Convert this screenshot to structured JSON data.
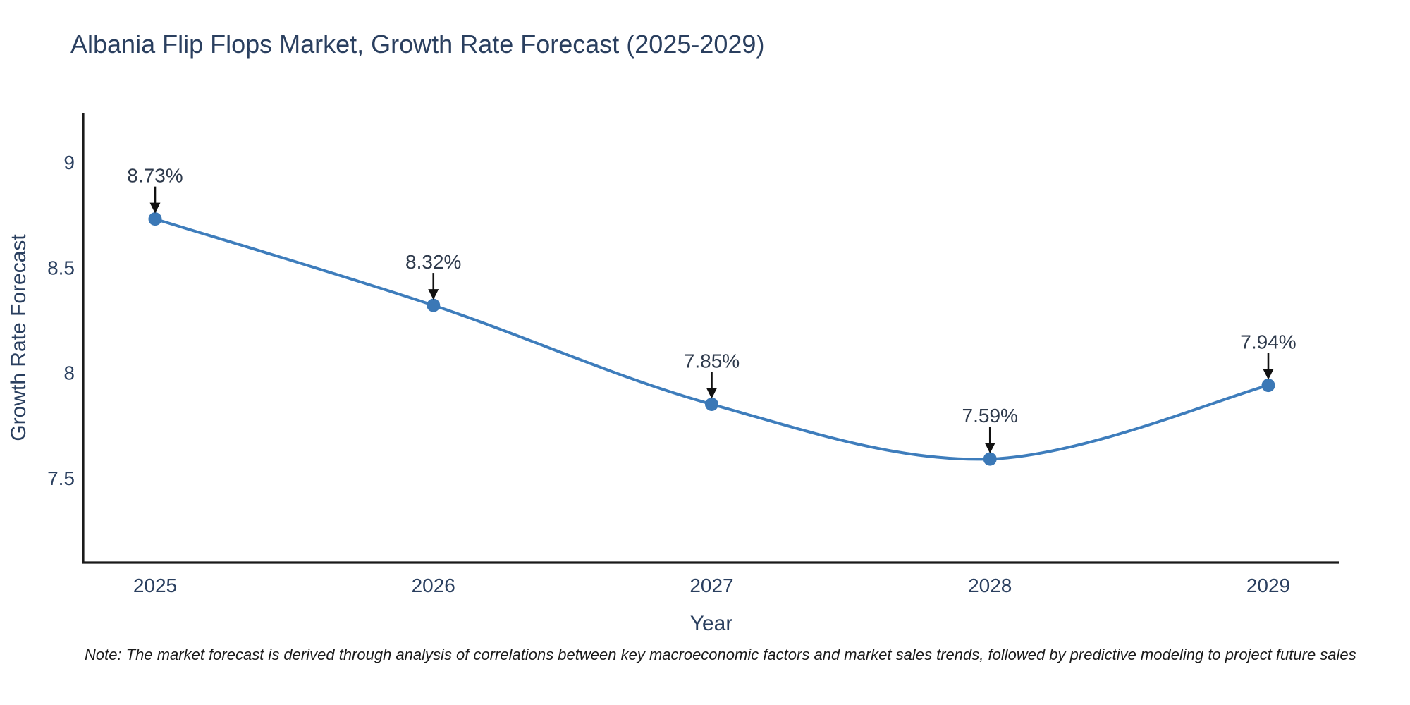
{
  "title": "Albania Flip Flops Market, Growth Rate Forecast (2025-2029)",
  "note": "Note: The market forecast is derived through analysis of correlations between key macroeconomic factors and market sales trends, followed by predictive modeling to project future sales",
  "chart_data": {
    "type": "line",
    "line_shape": "spline",
    "title": "Albania Flip Flops Market, Growth Rate Forecast (2025-2029)",
    "xlabel": "Year",
    "ylabel": "Growth Rate Forecast",
    "x": [
      2025,
      2026,
      2027,
      2028,
      2029
    ],
    "values": [
      8.73,
      8.32,
      7.85,
      7.59,
      7.94
    ],
    "point_labels": [
      "8.73%",
      "8.32%",
      "7.85%",
      "7.59%",
      "7.94%"
    ],
    "x_tick_labels": [
      "2025",
      "2026",
      "2027",
      "2028",
      "2029"
    ],
    "y_tick_values": [
      9,
      8.5,
      8,
      7.5
    ],
    "y_tick_labels": [
      "9",
      "8.5",
      "8",
      "7.5"
    ],
    "ylim": [
      7.1,
      9.23
    ],
    "grid": false,
    "legend": "none",
    "colors": {
      "line": "#3e7dbc",
      "marker": "#3b78b6",
      "axis_line": "#1a1a1a",
      "tick_text": "#2a3f5f",
      "annotation_text": "#2e3a4c",
      "annotation_arrow": "#111111",
      "title_text": "#2a3f5f"
    }
  }
}
